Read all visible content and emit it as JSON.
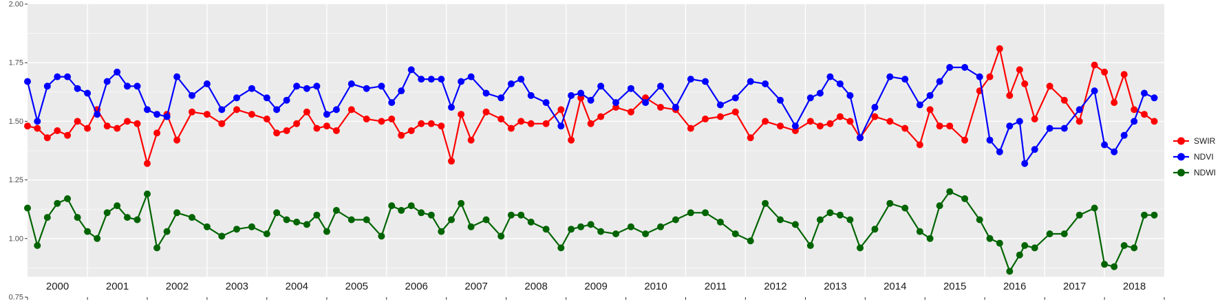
{
  "chart_data": {
    "type": "line",
    "title": "",
    "xlabel": "",
    "ylabel": "",
    "xlim": [
      "2000-01-01",
      "2019-01-01"
    ],
    "ylim": [
      0.75,
      2.0
    ],
    "yticks": [
      "0.75",
      "1.00",
      "1.25",
      "1.50",
      "1.75",
      "2.00"
    ],
    "ytick_values": [
      0.75,
      1.0,
      1.25,
      1.5,
      1.75,
      2.0
    ],
    "year_labels": [
      "2000",
      "2001",
      "2002",
      "2003",
      "2004",
      "2005",
      "2006",
      "2007",
      "2008",
      "2009",
      "2010",
      "2011",
      "2012",
      "2013",
      "2014",
      "2015",
      "2016",
      "2017",
      "2018"
    ],
    "grid": true,
    "facet_strips": "bottom",
    "legend_position": "right",
    "colors": {
      "panel_bg": "#ebebeb",
      "grid": "#ffffff",
      "axis_text": "#4d4d4d"
    },
    "series": [
      {
        "name": "SWIR",
        "color": "#ff0000",
        "x": [
          "2000-01-01",
          "2000-03-01",
          "2000-05-01",
          "2000-07-01",
          "2000-09-01",
          "2000-11-01",
          "2001-01-01",
          "2001-03-01",
          "2001-05-01",
          "2001-07-01",
          "2001-09-01",
          "2001-11-01",
          "2002-01-01",
          "2002-03-01",
          "2002-05-01",
          "2002-07-01",
          "2002-10-01",
          "2003-01-01",
          "2003-04-01",
          "2003-07-01",
          "2003-10-01",
          "2004-01-01",
          "2004-03-01",
          "2004-05-01",
          "2004-07-01",
          "2004-09-01",
          "2004-11-01",
          "2005-01-01",
          "2005-03-01",
          "2005-06-01",
          "2005-09-01",
          "2005-12-01",
          "2006-02-01",
          "2006-04-01",
          "2006-06-01",
          "2006-08-01",
          "2006-10-01",
          "2006-12-01",
          "2007-02-01",
          "2007-04-01",
          "2007-06-01",
          "2007-09-01",
          "2007-12-01",
          "2008-02-01",
          "2008-04-01",
          "2008-06-01",
          "2008-09-01",
          "2008-12-01",
          "2009-02-01",
          "2009-04-01",
          "2009-06-01",
          "2009-08-01",
          "2009-11-01",
          "2010-02-01",
          "2010-05-01",
          "2010-08-01",
          "2010-11-01",
          "2011-02-01",
          "2011-05-01",
          "2011-08-01",
          "2011-11-01",
          "2012-02-01",
          "2012-05-01",
          "2012-08-01",
          "2012-11-01",
          "2013-02-01",
          "2013-04-01",
          "2013-06-01",
          "2013-08-01",
          "2013-10-01",
          "2013-12-01",
          "2014-03-01",
          "2014-06-01",
          "2014-09-01",
          "2014-12-01",
          "2015-02-01",
          "2015-04-01",
          "2015-06-01",
          "2015-09-01",
          "2015-12-01",
          "2016-02-01",
          "2016-04-01",
          "2016-06-01",
          "2016-08-01",
          "2016-09-01",
          "2016-11-01",
          "2017-02-01",
          "2017-05-01",
          "2017-08-01",
          "2017-11-01",
          "2018-01-01",
          "2018-03-01",
          "2018-05-01",
          "2018-07-01",
          "2018-09-01",
          "2018-11-01"
        ],
        "values": [
          1.48,
          1.47,
          1.43,
          1.46,
          1.44,
          1.5,
          1.47,
          1.55,
          1.48,
          1.47,
          1.5,
          1.49,
          1.32,
          1.45,
          1.53,
          1.42,
          1.54,
          1.53,
          1.49,
          1.55,
          1.53,
          1.51,
          1.45,
          1.46,
          1.49,
          1.54,
          1.47,
          1.48,
          1.46,
          1.55,
          1.51,
          1.5,
          1.51,
          1.44,
          1.46,
          1.49,
          1.49,
          1.48,
          1.33,
          1.53,
          1.42,
          1.54,
          1.51,
          1.47,
          1.5,
          1.49,
          1.49,
          1.55,
          1.42,
          1.6,
          1.49,
          1.52,
          1.56,
          1.54,
          1.6,
          1.56,
          1.55,
          1.47,
          1.51,
          1.52,
          1.54,
          1.43,
          1.5,
          1.48,
          1.46,
          1.5,
          1.48,
          1.49,
          1.52,
          1.5,
          1.43,
          1.52,
          1.5,
          1.47,
          1.4,
          1.55,
          1.48,
          1.48,
          1.42,
          1.63,
          1.69,
          1.81,
          1.61,
          1.72,
          1.66,
          1.51,
          1.65,
          1.59,
          1.5,
          1.74,
          1.71,
          1.58,
          1.7,
          1.55,
          1.53,
          1.5
        ]
      },
      {
        "name": "NDVI",
        "color": "#0000ff",
        "x": [
          "2000-01-01",
          "2000-03-01",
          "2000-05-01",
          "2000-07-01",
          "2000-09-01",
          "2000-11-01",
          "2001-01-01",
          "2001-03-01",
          "2001-05-01",
          "2001-07-01",
          "2001-09-01",
          "2001-11-01",
          "2002-01-01",
          "2002-03-01",
          "2002-05-01",
          "2002-07-01",
          "2002-10-01",
          "2003-01-01",
          "2003-04-01",
          "2003-07-01",
          "2003-10-01",
          "2004-01-01",
          "2004-03-01",
          "2004-05-01",
          "2004-07-01",
          "2004-09-01",
          "2004-11-01",
          "2005-01-01",
          "2005-03-01",
          "2005-06-01",
          "2005-09-01",
          "2005-12-01",
          "2006-02-01",
          "2006-04-01",
          "2006-06-01",
          "2006-08-01",
          "2006-10-01",
          "2006-12-01",
          "2007-02-01",
          "2007-04-01",
          "2007-06-01",
          "2007-09-01",
          "2007-12-01",
          "2008-02-01",
          "2008-04-01",
          "2008-06-01",
          "2008-09-01",
          "2008-12-01",
          "2009-02-01",
          "2009-04-01",
          "2009-06-01",
          "2009-08-01",
          "2009-11-01",
          "2010-02-01",
          "2010-05-01",
          "2010-08-01",
          "2010-11-01",
          "2011-02-01",
          "2011-05-01",
          "2011-08-01",
          "2011-11-01",
          "2012-02-01",
          "2012-05-01",
          "2012-08-01",
          "2012-11-01",
          "2013-02-01",
          "2013-04-01",
          "2013-06-01",
          "2013-08-01",
          "2013-10-01",
          "2013-12-01",
          "2014-03-01",
          "2014-06-01",
          "2014-09-01",
          "2014-12-01",
          "2015-02-01",
          "2015-04-01",
          "2015-06-01",
          "2015-09-01",
          "2015-12-01",
          "2016-02-01",
          "2016-04-01",
          "2016-06-01",
          "2016-08-01",
          "2016-09-01",
          "2016-11-01",
          "2017-02-01",
          "2017-05-01",
          "2017-08-01",
          "2017-11-01",
          "2018-01-01",
          "2018-03-01",
          "2018-05-01",
          "2018-07-01",
          "2018-09-01",
          "2018-11-01"
        ],
        "values": [
          1.67,
          1.5,
          1.65,
          1.69,
          1.69,
          1.64,
          1.62,
          1.53,
          1.67,
          1.71,
          1.65,
          1.65,
          1.55,
          1.53,
          1.52,
          1.69,
          1.61,
          1.66,
          1.55,
          1.6,
          1.64,
          1.6,
          1.55,
          1.59,
          1.65,
          1.64,
          1.65,
          1.53,
          1.55,
          1.66,
          1.64,
          1.65,
          1.58,
          1.63,
          1.72,
          1.68,
          1.68,
          1.68,
          1.56,
          1.67,
          1.69,
          1.62,
          1.6,
          1.66,
          1.68,
          1.61,
          1.58,
          1.48,
          1.61,
          1.62,
          1.59,
          1.65,
          1.58,
          1.64,
          1.58,
          1.65,
          1.56,
          1.68,
          1.67,
          1.57,
          1.6,
          1.67,
          1.66,
          1.59,
          1.48,
          1.6,
          1.62,
          1.69,
          1.66,
          1.61,
          1.43,
          1.56,
          1.69,
          1.68,
          1.57,
          1.61,
          1.67,
          1.73,
          1.73,
          1.69,
          1.42,
          1.37,
          1.48,
          1.5,
          1.32,
          1.38,
          1.47,
          1.47,
          1.55,
          1.63,
          1.4,
          1.37,
          1.44,
          1.5,
          1.62,
          1.6
        ]
      },
      {
        "name": "NDWI",
        "color": "#006400",
        "x": [
          "2000-01-01",
          "2000-03-01",
          "2000-05-01",
          "2000-07-01",
          "2000-09-01",
          "2000-11-01",
          "2001-01-01",
          "2001-03-01",
          "2001-05-01",
          "2001-07-01",
          "2001-09-01",
          "2001-11-01",
          "2002-01-01",
          "2002-03-01",
          "2002-05-01",
          "2002-07-01",
          "2002-10-01",
          "2003-01-01",
          "2003-04-01",
          "2003-07-01",
          "2003-10-01",
          "2004-01-01",
          "2004-03-01",
          "2004-05-01",
          "2004-07-01",
          "2004-09-01",
          "2004-11-01",
          "2005-01-01",
          "2005-03-01",
          "2005-06-01",
          "2005-09-01",
          "2005-12-01",
          "2006-02-01",
          "2006-04-01",
          "2006-06-01",
          "2006-08-01",
          "2006-10-01",
          "2006-12-01",
          "2007-02-01",
          "2007-04-01",
          "2007-06-01",
          "2007-09-01",
          "2007-12-01",
          "2008-02-01",
          "2008-04-01",
          "2008-06-01",
          "2008-09-01",
          "2008-12-01",
          "2009-02-01",
          "2009-04-01",
          "2009-06-01",
          "2009-08-01",
          "2009-11-01",
          "2010-02-01",
          "2010-05-01",
          "2010-08-01",
          "2010-11-01",
          "2011-02-01",
          "2011-05-01",
          "2011-08-01",
          "2011-11-01",
          "2012-02-01",
          "2012-05-01",
          "2012-08-01",
          "2012-11-01",
          "2013-02-01",
          "2013-04-01",
          "2013-06-01",
          "2013-08-01",
          "2013-10-01",
          "2013-12-01",
          "2014-03-01",
          "2014-06-01",
          "2014-09-01",
          "2014-12-01",
          "2015-02-01",
          "2015-04-01",
          "2015-06-01",
          "2015-09-01",
          "2015-12-01",
          "2016-02-01",
          "2016-04-01",
          "2016-06-01",
          "2016-08-01",
          "2016-09-01",
          "2016-11-01",
          "2017-02-01",
          "2017-05-01",
          "2017-08-01",
          "2017-11-01",
          "2018-01-01",
          "2018-03-01",
          "2018-05-01",
          "2018-07-01",
          "2018-09-01",
          "2018-11-01"
        ],
        "values": [
          1.13,
          0.97,
          1.09,
          1.15,
          1.17,
          1.09,
          1.03,
          1.0,
          1.11,
          1.14,
          1.09,
          1.08,
          1.19,
          0.96,
          1.03,
          1.11,
          1.09,
          1.05,
          1.01,
          1.04,
          1.05,
          1.02,
          1.11,
          1.08,
          1.07,
          1.06,
          1.1,
          1.03,
          1.12,
          1.08,
          1.08,
          1.01,
          1.14,
          1.12,
          1.14,
          1.11,
          1.1,
          1.03,
          1.08,
          1.15,
          1.05,
          1.08,
          1.01,
          1.1,
          1.1,
          1.07,
          1.04,
          0.96,
          1.04,
          1.05,
          1.06,
          1.03,
          1.02,
          1.05,
          1.02,
          1.05,
          1.08,
          1.11,
          1.11,
          1.07,
          1.02,
          0.99,
          1.15,
          1.08,
          1.06,
          0.97,
          1.08,
          1.11,
          1.1,
          1.08,
          0.96,
          1.04,
          1.15,
          1.13,
          1.03,
          1.0,
          1.14,
          1.2,
          1.17,
          1.08,
          1.0,
          0.98,
          0.86,
          0.93,
          0.97,
          0.96,
          1.02,
          1.02,
          1.1,
          1.13,
          0.89,
          0.88,
          0.97,
          0.96,
          1.1,
          1.1
        ]
      }
    ]
  }
}
